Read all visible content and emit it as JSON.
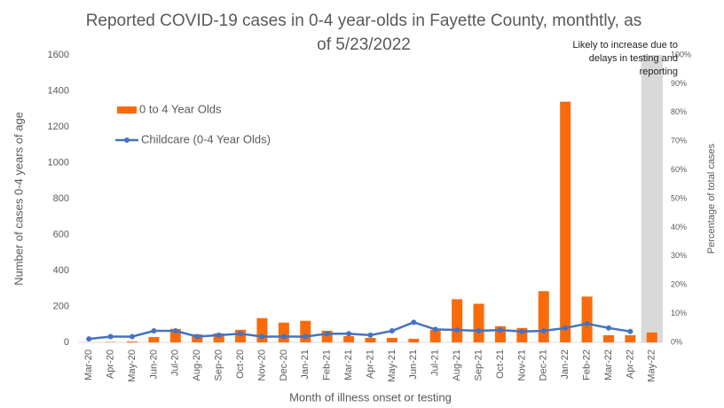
{
  "chart_data": {
    "type": "bar",
    "title": "Reported COVID-19 cases in 0-4 year-olds in Fayette County, monthtly, as of 5/23/2022",
    "x_label": "Month of illness onset or testing",
    "y_label": "Number of cases 0-4 years of age",
    "y2_label": "Percentage of total cases",
    "annotation": "Likely to increase due to delays in testing and reporting",
    "categories": [
      "Mar-20",
      "Apr-20",
      "May-20",
      "Jun-20",
      "Jul-20",
      "Aug-20",
      "Sep-20",
      "Oct-20",
      "Nov-20",
      "Dec-20",
      "Jan-21",
      "Feb-21",
      "Mar-21",
      "Apr-21",
      "May-21",
      "Jun-21",
      "Jul-21",
      "Aug-21",
      "Sep-21",
      "Oct-21",
      "Nov-21",
      "Dec-21",
      "Jan-22",
      "Feb-22",
      "Mar-22",
      "Apr-22",
      "May-22"
    ],
    "series": [
      {
        "name": "0 to 4 Year Olds",
        "type": "bar",
        "color": "#f96b0a",
        "values": [
          0,
          2,
          5,
          30,
          75,
          45,
          50,
          70,
          135,
          110,
          120,
          65,
          35,
          25,
          25,
          20,
          70,
          240,
          215,
          90,
          80,
          285,
          1340,
          255,
          40,
          40,
          55
        ]
      },
      {
        "name": "Childcare (0-4 Year Olds)",
        "type": "line",
        "axis": "y2",
        "color": "#4472c4",
        "values": [
          1.2,
          2,
          2,
          4,
          4,
          2,
          2.5,
          3,
          2,
          2,
          2,
          3,
          3,
          2.5,
          4,
          7,
          4.5,
          4.3,
          4,
          4.3,
          3.8,
          4,
          5,
          6.5,
          5,
          3.8,
          null
        ]
      }
    ],
    "ylim": [
      0,
      1600
    ],
    "yticks": [
      0,
      200,
      400,
      600,
      800,
      1000,
      1200,
      1400,
      1600
    ],
    "y2lim": [
      0,
      100
    ],
    "y2ticks": [
      {
        "value": 0,
        "label": "0%"
      },
      {
        "value": 10,
        "label": "10%"
      },
      {
        "value": 20,
        "label": "20%"
      },
      {
        "value": 30,
        "label": "30%"
      },
      {
        "value": 40,
        "label": "40%"
      },
      {
        "value": 50,
        "label": "50%"
      },
      {
        "value": 60,
        "label": "60%"
      },
      {
        "value": 70,
        "label": "70%"
      },
      {
        "value": 80,
        "label": "80%"
      },
      {
        "value": 90,
        "label": "90%"
      },
      {
        "value": 100,
        "label": "100%"
      }
    ],
    "shade": {
      "category_index": 26,
      "color": "#d9d9d9"
    },
    "legend": "upper left",
    "grid": false
  }
}
